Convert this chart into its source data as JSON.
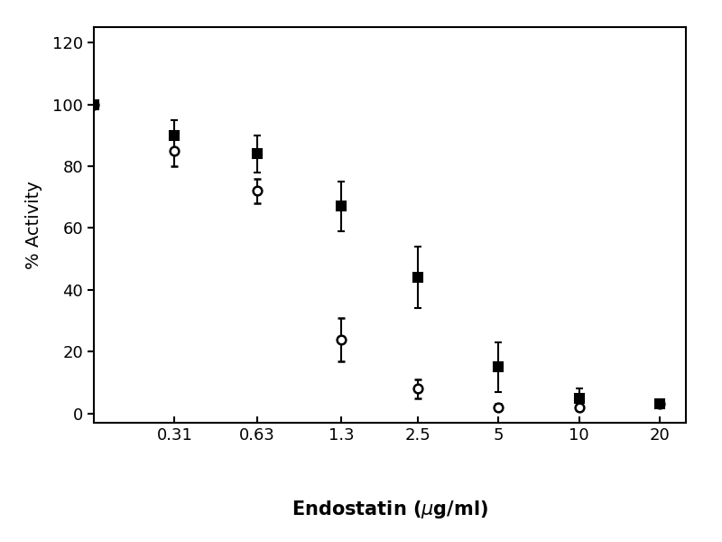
{
  "title": "",
  "xlabel": "Endostatin (μg/ml)",
  "ylabel": "% Activity",
  "ylim": [
    -3,
    125
  ],
  "yticks": [
    0,
    20,
    40,
    60,
    80,
    100,
    120
  ],
  "xtick_labels": [
    "0.31",
    "0.63",
    "1.3",
    "2.5",
    "5",
    "10",
    "20"
  ],
  "xtick_values": [
    0.31,
    0.63,
    1.3,
    2.5,
    5,
    10,
    20
  ],
  "xlim": [
    0.155,
    25
  ],
  "background_color": "#ffffff",
  "series": [
    {
      "name": "open_circle",
      "x": [
        0.155,
        0.31,
        0.63,
        1.3,
        2.5,
        5,
        10,
        20
      ],
      "y": [
        100,
        85,
        72,
        24,
        8,
        2,
        2,
        3
      ],
      "yerr": [
        0,
        5,
        4,
        7,
        3,
        1,
        1,
        1
      ],
      "marker": "o",
      "markersize": 7,
      "markerfacecolor": "white",
      "markeredgecolor": "black",
      "markeredgewidth": 1.8,
      "linecolor": "black",
      "linewidth": 2.2
    },
    {
      "name": "filled_square",
      "x": [
        0.155,
        0.31,
        0.63,
        1.3,
        2.5,
        5,
        10,
        20
      ],
      "y": [
        100,
        90,
        84,
        67,
        44,
        15,
        5,
        3
      ],
      "yerr": [
        0,
        5,
        6,
        8,
        10,
        8,
        3,
        1
      ],
      "marker": "s",
      "markersize": 7,
      "markerfacecolor": "black",
      "markeredgecolor": "black",
      "markeredgewidth": 1.5,
      "linecolor": "black",
      "linewidth": 2.2
    }
  ]
}
